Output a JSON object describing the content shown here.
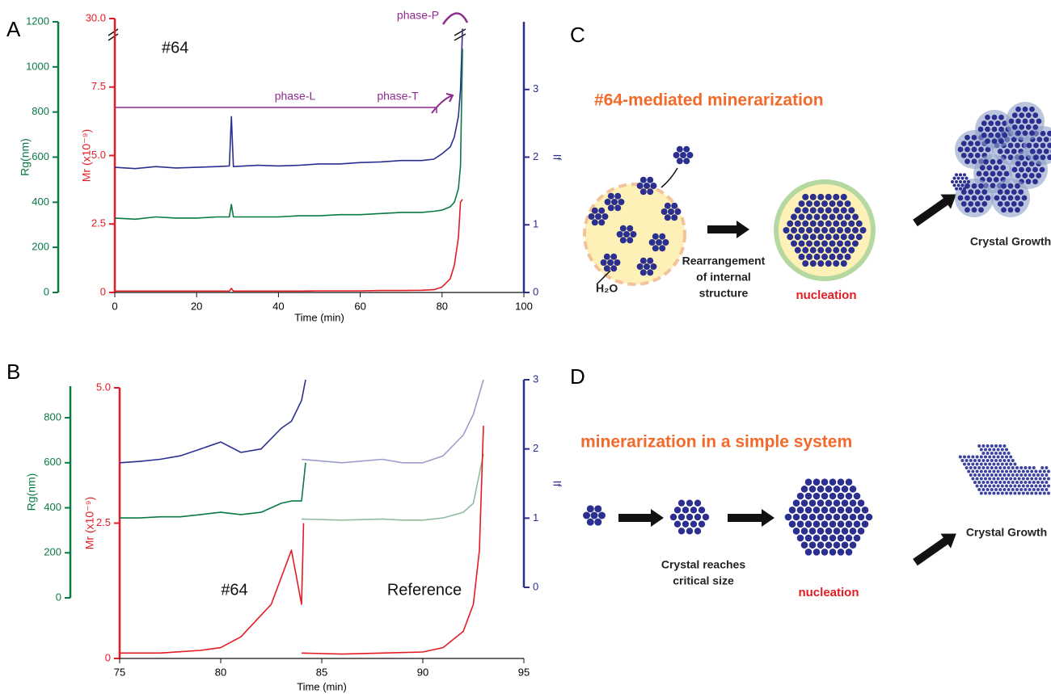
{
  "chart_data": [
    {
      "type": "line",
      "panel_label": "A",
      "xlabel": "Time (min)",
      "ylabel": "Rg(nm)",
      "y2label": "If",
      "y3label": "Mr (x10⁻⁹)",
      "xlim": [
        0,
        100
      ],
      "xticks": [
        0,
        20,
        40,
        60,
        80,
        100
      ],
      "ylim": [
        0,
        1200
      ],
      "yticks": [
        0,
        200,
        400,
        600,
        800,
        1000,
        1200
      ],
      "ycolor": "#0a7a45",
      "y2lim": [
        0,
        4
      ],
      "y2ticks": [
        0,
        1,
        2,
        3
      ],
      "y2color": "#2b2f8f",
      "y3lim": [
        0,
        30
      ],
      "y3break": [
        10,
        30
      ],
      "y3ticks": [
        0,
        2.5,
        {
          "value": 5,
          "label": "5.0"
        },
        7.5,
        {
          "value": 30,
          "label": "30.0"
        }
      ],
      "y3color": "#e31b23",
      "annotations": [
        "#64",
        "phase-L",
        "phase-T",
        "phase-P"
      ],
      "x": [
        0,
        5,
        10,
        15,
        20,
        25,
        28,
        28.5,
        29,
        35,
        40,
        45,
        50,
        55,
        60,
        65,
        70,
        75,
        78,
        80,
        82,
        83,
        84,
        84.5,
        85
      ],
      "series": [
        {
          "color": "#2b2f8f",
          "axis": "y2",
          "values": [
            1.85,
            1.83,
            1.86,
            1.84,
            1.85,
            1.86,
            1.87,
            2.6,
            1.86,
            1.88,
            1.87,
            1.88,
            1.9,
            1.9,
            1.92,
            1.93,
            1.95,
            1.95,
            1.97,
            2.05,
            2.15,
            2.3,
            2.6,
            3.0,
            3.9
          ]
        },
        {
          "color": "#0a7a45",
          "axis": "y",
          "values": [
            330,
            325,
            335,
            330,
            330,
            335,
            335,
            390,
            335,
            335,
            335,
            340,
            340,
            345,
            345,
            350,
            355,
            355,
            360,
            365,
            380,
            400,
            460,
            560,
            1080
          ]
        },
        {
          "color": "#e31b23",
          "axis": "y3",
          "values": [
            0.05,
            0.05,
            0.05,
            0.05,
            0.05,
            0.05,
            0.05,
            0.15,
            0.05,
            0.05,
            0.05,
            0.05,
            0.06,
            0.06,
            0.06,
            0.07,
            0.07,
            0.08,
            0.1,
            0.2,
            0.5,
            1.0,
            2.0,
            3.3,
            3.4
          ]
        }
      ]
    },
    {
      "type": "line",
      "panel_label": "B",
      "xlabel": "Time (min)",
      "ylabel": "Rg(nm)",
      "y2label": "If",
      "y3label": "Mr (x10⁻⁹)",
      "xlim": [
        75,
        95
      ],
      "xticks": [
        75,
        80,
        85,
        90,
        95
      ],
      "ylim": [
        0,
        940
      ],
      "yticks": [
        0,
        200,
        400,
        600,
        800
      ],
      "ycolor": "#0a7a45",
      "y2lim": [
        0,
        3
      ],
      "y2ticks": [
        0,
        1,
        2,
        3
      ],
      "y2color": "#2b2f8f",
      "y3lim": [
        0,
        5
      ],
      "y3ticks": [
        0,
        2.5,
        {
          "value": 5,
          "label": "5.0"
        }
      ],
      "y3color": "#e31b23",
      "annotations": [
        "#64",
        "Reference"
      ],
      "series": [
        {
          "color": "#9a9dcc",
          "axis": "y2",
          "x": [
            84,
            86,
            88,
            89,
            90,
            91,
            92,
            92.5,
            93
          ],
          "values": [
            1.85,
            1.8,
            1.85,
            1.8,
            1.8,
            1.9,
            2.2,
            2.5,
            3.0
          ]
        },
        {
          "color": "#94b9a0",
          "axis": "y",
          "x": [
            84,
            86,
            88,
            89,
            90,
            91,
            92,
            92.5,
            93
          ],
          "values": [
            350,
            345,
            350,
            345,
            345,
            355,
            380,
            420,
            640
          ]
        },
        {
          "color": "#2b2f8f",
          "axis": "y2",
          "x": [
            75,
            76,
            77,
            78,
            79,
            80,
            81,
            82,
            83,
            83.5,
            84,
            84.2
          ],
          "values": [
            1.8,
            1.82,
            1.85,
            1.9,
            2.0,
            2.1,
            1.95,
            2.0,
            2.3,
            2.4,
            2.7,
            3.0
          ]
        },
        {
          "color": "#0a7a45",
          "axis": "y",
          "x": [
            75,
            76,
            77,
            78,
            79,
            80,
            81,
            82,
            83,
            83.5,
            84,
            84.2
          ],
          "values": [
            355,
            355,
            360,
            360,
            370,
            380,
            370,
            380,
            420,
            430,
            430,
            600
          ]
        },
        {
          "color": "#e31b23",
          "axis": "y3",
          "x": [
            84,
            86,
            88,
            90,
            91,
            92,
            92.5,
            92.8,
            93
          ],
          "values": [
            0.1,
            0.08,
            0.1,
            0.12,
            0.2,
            0.5,
            1.0,
            2.0,
            4.3
          ]
        },
        {
          "color": "#e31b23",
          "axis": "y3",
          "x": [
            75,
            77,
            79,
            80,
            81,
            82,
            82.5,
            83,
            83.5,
            84,
            84.1
          ],
          "values": [
            0.1,
            0.1,
            0.15,
            0.2,
            0.4,
            0.8,
            1.0,
            1.5,
            2.0,
            1.0,
            2.5
          ]
        }
      ]
    }
  ],
  "diagrams": [
    {
      "panel_label": "C",
      "title": "#64-mediated minerarization",
      "water": "H₂O",
      "step": [
        "Rearrangement",
        "of internal",
        "structure"
      ],
      "nucleation": "nucleation",
      "growth": "Crystal Growth"
    },
    {
      "panel_label": "D",
      "title": "minerarization in a simple system",
      "step": [
        "Crystal reaches",
        "critical size"
      ],
      "nucleation": "nucleation",
      "growth": "Crystal Growth"
    }
  ]
}
